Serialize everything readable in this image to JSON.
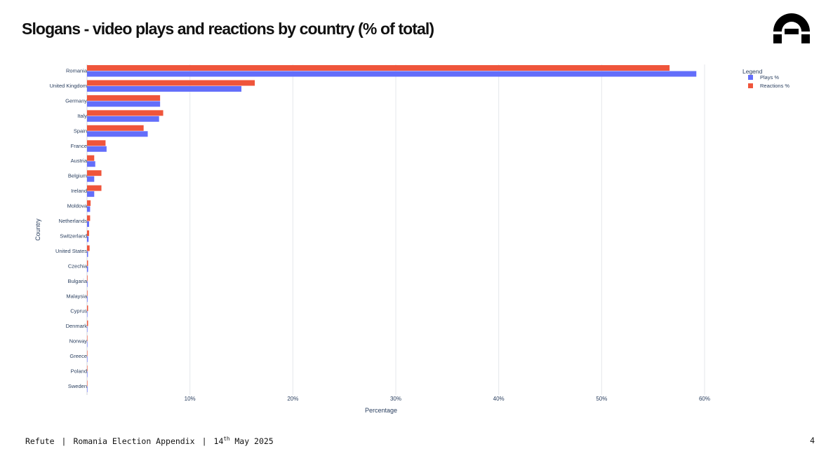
{
  "header": {
    "title": "Slogans - video plays and reactions by country (% of total)"
  },
  "logo": {
    "icon": "refute-logo-icon"
  },
  "footer": {
    "brand": "Refute",
    "separator": "|",
    "report": "Romania Election Appendix",
    "date_day": "14",
    "date_suffix": "th",
    "date_rest": "May 2025",
    "page_number": "4"
  },
  "chart_data": {
    "type": "bar",
    "orientation": "horizontal",
    "xlabel": "Percentage",
    "ylabel": "Country",
    "xlim": [
      0,
      62
    ],
    "xticks": [
      10,
      20,
      30,
      40,
      50,
      60
    ],
    "xtick_labels": [
      "10%",
      "20%",
      "30%",
      "40%",
      "50%",
      "60%"
    ],
    "grid": true,
    "legend": {
      "title": "Legend",
      "position": "top-right"
    },
    "categories": [
      "Romania",
      "United Kingdom",
      "Germany",
      "Italy",
      "Spain",
      "France",
      "Austria",
      "Belgium",
      "Ireland",
      "Moldova",
      "Netherlands",
      "Switzerland",
      "United States",
      "Czechia",
      "Bulgaria",
      "Malaysia",
      "Cyprus",
      "Denmark",
      "Norway",
      "Greece",
      "Poland",
      "Sweden"
    ],
    "series": [
      {
        "name": "Plays %",
        "color": "#636efa",
        "values": [
          59.2,
          15.0,
          7.1,
          7.0,
          5.9,
          1.9,
          0.8,
          0.7,
          0.7,
          0.3,
          0.2,
          0.15,
          0.1,
          0.1,
          0.05,
          0.05,
          0.03,
          0.03,
          0.02,
          0.01,
          0.01,
          0.01
        ]
      },
      {
        "name": "Reactions %",
        "color": "#ef553b",
        "values": [
          56.6,
          16.3,
          7.1,
          7.4,
          5.5,
          1.8,
          0.7,
          1.4,
          1.4,
          0.35,
          0.3,
          0.2,
          0.25,
          0.1,
          0.05,
          0.05,
          0.1,
          0.1,
          0.02,
          0.01,
          0.01,
          0.01
        ]
      }
    ]
  }
}
